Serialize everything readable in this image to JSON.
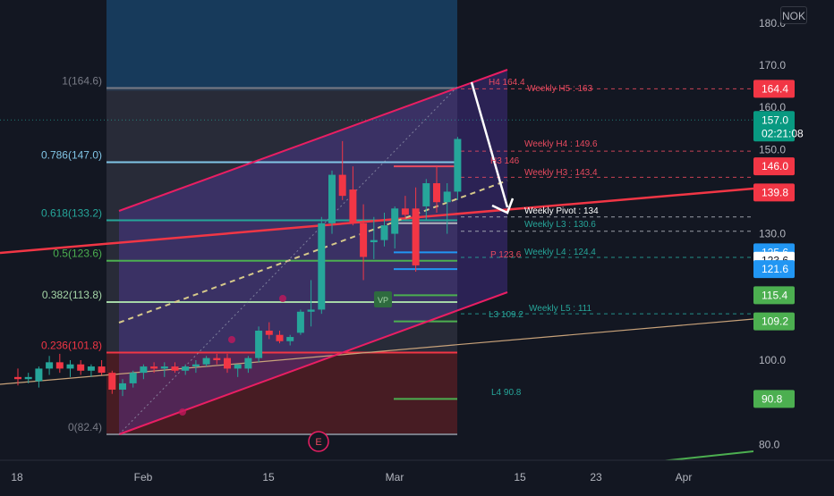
{
  "currency": "NOK",
  "chart_data": {
    "type": "candlestick",
    "title": "",
    "ylim": [
      76,
      186
    ],
    "y_tick_labels": [
      "180.0",
      "170.0",
      "160.0",
      "150.0",
      "140.0",
      "130.0",
      "100.0",
      "80.0"
    ],
    "x_tick_labels": [
      "18",
      "Feb",
      "15",
      "Mar",
      "15",
      "23",
      "Apr"
    ],
    "candles": [
      {
        "o": 96.0,
        "h": 98.0,
        "l": 94.0,
        "c": 95.5
      },
      {
        "o": 95.5,
        "h": 97.0,
        "l": 94.5,
        "c": 96.0
      },
      {
        "o": 95.0,
        "h": 98.5,
        "l": 93.5,
        "c": 98.0
      },
      {
        "o": 98.0,
        "h": 101.0,
        "l": 96.5,
        "c": 99.5
      },
      {
        "o": 99.5,
        "h": 101.5,
        "l": 97.0,
        "c": 98.0
      },
      {
        "o": 98.0,
        "h": 100.0,
        "l": 96.0,
        "c": 99.0
      },
      {
        "o": 99.0,
        "h": 100.0,
        "l": 96.5,
        "c": 97.5
      },
      {
        "o": 97.5,
        "h": 99.0,
        "l": 96.0,
        "c": 98.5
      },
      {
        "o": 98.5,
        "h": 100.0,
        "l": 96.5,
        "c": 97.0
      },
      {
        "o": 97.0,
        "h": 97.5,
        "l": 92.0,
        "c": 93.0
      },
      {
        "o": 93.0,
        "h": 95.5,
        "l": 91.5,
        "c": 94.5
      },
      {
        "o": 94.5,
        "h": 97.5,
        "l": 93.5,
        "c": 97.0
      },
      {
        "o": 97.0,
        "h": 99.0,
        "l": 95.5,
        "c": 98.5
      },
      {
        "o": 98.5,
        "h": 99.5,
        "l": 97.0,
        "c": 98.0
      },
      {
        "o": 98.0,
        "h": 99.5,
        "l": 96.0,
        "c": 98.5
      },
      {
        "o": 98.5,
        "h": 99.5,
        "l": 97.0,
        "c": 97.5
      },
      {
        "o": 97.5,
        "h": 99.0,
        "l": 96.5,
        "c": 98.5
      },
      {
        "o": 98.5,
        "h": 100.0,
        "l": 97.0,
        "c": 99.0
      },
      {
        "o": 99.0,
        "h": 101.0,
        "l": 98.5,
        "c": 100.5
      },
      {
        "o": 100.5,
        "h": 101.5,
        "l": 99.0,
        "c": 100.0
      },
      {
        "o": 100.5,
        "h": 101.5,
        "l": 97.0,
        "c": 98.0
      },
      {
        "o": 98.0,
        "h": 99.0,
        "l": 96.0,
        "c": 99.0
      },
      {
        "o": 98.0,
        "h": 101.0,
        "l": 97.0,
        "c": 100.5
      },
      {
        "o": 100.5,
        "h": 108.0,
        "l": 99.5,
        "c": 107.0
      },
      {
        "o": 107.0,
        "h": 109.0,
        "l": 105.0,
        "c": 106.0
      },
      {
        "o": 106.0,
        "h": 107.0,
        "l": 104.0,
        "c": 104.5
      },
      {
        "o": 104.5,
        "h": 106.0,
        "l": 103.5,
        "c": 105.5
      },
      {
        "o": 106.5,
        "h": 112.0,
        "l": 106.0,
        "c": 111.5
      },
      {
        "o": 111.5,
        "h": 119.0,
        "l": 108.0,
        "c": 112.0
      },
      {
        "o": 112.0,
        "h": 134.0,
        "l": 111.0,
        "c": 132.5
      },
      {
        "o": 132.5,
        "h": 145.0,
        "l": 130.0,
        "c": 144.0
      },
      {
        "o": 144.0,
        "h": 152.0,
        "l": 138.0,
        "c": 139.0
      },
      {
        "o": 140.5,
        "h": 146.0,
        "l": 132.0,
        "c": 132.5
      },
      {
        "o": 132.5,
        "h": 137.0,
        "l": 119.0,
        "c": 124.5
      },
      {
        "o": 128.0,
        "h": 134.0,
        "l": 124.0,
        "c": 128.5
      },
      {
        "o": 128.5,
        "h": 135.0,
        "l": 127.0,
        "c": 132.0
      },
      {
        "o": 130.0,
        "h": 136.5,
        "l": 126.5,
        "c": 136.0
      },
      {
        "o": 136.0,
        "h": 139.0,
        "l": 133.5,
        "c": 134.5
      },
      {
        "o": 136.0,
        "h": 141.0,
        "l": 121.0,
        "c": 122.5
      },
      {
        "o": 136.5,
        "h": 143.0,
        "l": 133.0,
        "c": 142.0
      },
      {
        "o": 142.0,
        "h": 146.0,
        "l": 135.0,
        "c": 137.5
      },
      {
        "o": 137.5,
        "h": 142.0,
        "l": 130.0,
        "c": 140.0
      },
      {
        "o": 140.0,
        "h": 153.0,
        "l": 138.0,
        "c": 152.5
      }
    ],
    "fibonacci": [
      {
        "label": "1(164.6)",
        "value": 164.6,
        "color": "#787b86"
      },
      {
        "label": "0.786(147.0)",
        "value": 147.0,
        "color": "#81c5e6"
      },
      {
        "label": "0.618(133.2)",
        "value": 133.2,
        "color": "#26a69a"
      },
      {
        "label": "0.5(123.6)",
        "value": 123.6,
        "color": "#4caf50"
      },
      {
        "label": "0.382(113.8)",
        "value": 113.8,
        "color": "#a5d6a7"
      },
      {
        "label": "0.236(101.8)",
        "value": 101.8,
        "color": "#f23645"
      },
      {
        "label": "0(82.4)",
        "value": 82.4,
        "color": "#787b86"
      }
    ],
    "pivot_labels": [
      {
        "text": "H4 164.4",
        "value": 164.4,
        "color": "#e84a5f"
      },
      {
        "text": "Weekly H5 : 163",
        "value": 163.0,
        "color": "#e84a5f"
      },
      {
        "text": "Weekly H4 : 149.6",
        "value": 149.6,
        "color": "#e84a5f"
      },
      {
        "text": "H3 146",
        "value": 146.0,
        "color": "#e84a5f"
      },
      {
        "text": "Weekly H3 : 143.4",
        "value": 143.4,
        "color": "#e84a5f"
      },
      {
        "text": "Weekly Pivot : 134",
        "value": 134.0,
        "color": "#ffffff"
      },
      {
        "text": "Weekly L3 : 130.6",
        "value": 130.6,
        "color": "#26a69a"
      },
      {
        "text": "P 123.6",
        "value": 123.6,
        "color": "#e84a5f"
      },
      {
        "text": "Weekly L4 : 124.4",
        "value": 124.4,
        "color": "#26a69a"
      },
      {
        "text": "Weekly L5 : 111",
        "value": 111.0,
        "color": "#26a69a"
      },
      {
        "text": "L3 109.2",
        "value": 109.2,
        "color": "#26a69a"
      },
      {
        "text": "L4 90.8",
        "value": 90.8,
        "color": "#26a69a"
      }
    ],
    "price_badges": [
      {
        "text": "164.4",
        "value": 164.4,
        "bg": "#f23645",
        "fg": "#ffffff"
      },
      {
        "text": "157.0",
        "sub": "02:21:08",
        "value": 157.0,
        "bg": "#089981",
        "fg": "#ffffff"
      },
      {
        "text": "146.0",
        "value": 146.0,
        "bg": "#f23645",
        "fg": "#ffffff"
      },
      {
        "text": "139.8",
        "value": 139.8,
        "bg": "#f23645",
        "fg": "#ffffff"
      },
      {
        "text": "125.6",
        "value": 125.6,
        "bg": "#2196f3",
        "fg": "#ffffff"
      },
      {
        "text": "123.6",
        "value": 123.6,
        "bg": "#ffffff",
        "fg": "#131722"
      },
      {
        "text": "121.6",
        "value": 121.6,
        "bg": "#2196f3",
        "fg": "#ffffff"
      },
      {
        "text": "115.4",
        "value": 115.4,
        "bg": "#4caf50",
        "fg": "#ffffff"
      },
      {
        "text": "109.2",
        "value": 109.2,
        "bg": "#4caf50",
        "fg": "#ffffff"
      },
      {
        "text": "90.8",
        "value": 90.8,
        "bg": "#4caf50",
        "fg": "#ffffff"
      }
    ],
    "markers": {
      "earnings": "E",
      "volume_profile": "VP"
    },
    "colors": {
      "up": "#26a69a",
      "down": "#f23645",
      "background": "#131722",
      "channel": "#e91e63",
      "trendline": "#f23645"
    }
  }
}
